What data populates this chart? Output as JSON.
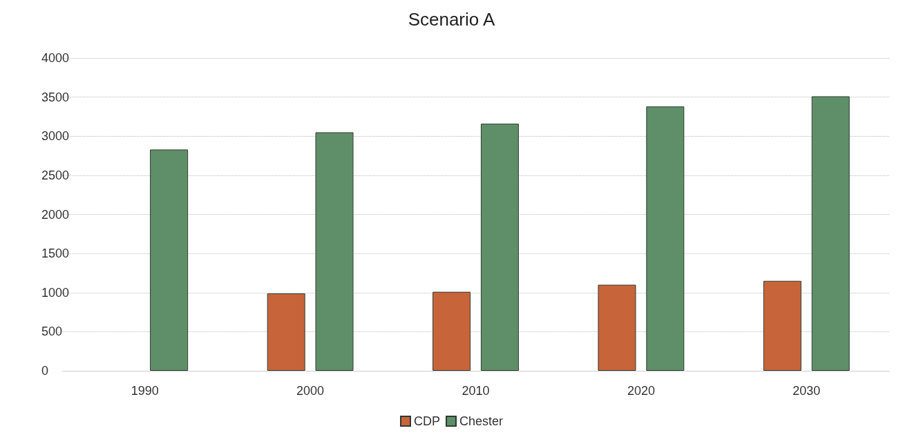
{
  "chart_data": {
    "type": "bar",
    "title": "Scenario A",
    "categories": [
      "1990",
      "2000",
      "2010",
      "2020",
      "2030"
    ],
    "series": [
      {
        "name": "CDP",
        "color": "#c8643a",
        "values": [
          null,
          990,
          1010,
          1100,
          1150
        ]
      },
      {
        "name": "Chester",
        "color": "#5f8f68",
        "values": [
          2830,
          3050,
          3160,
          3380,
          3510
        ]
      }
    ],
    "ylim": [
      0,
      4000
    ],
    "yticks": [
      0,
      500,
      1000,
      1500,
      2000,
      2500,
      3000,
      3500,
      4000
    ],
    "grid": "y",
    "legend": "bottom"
  }
}
